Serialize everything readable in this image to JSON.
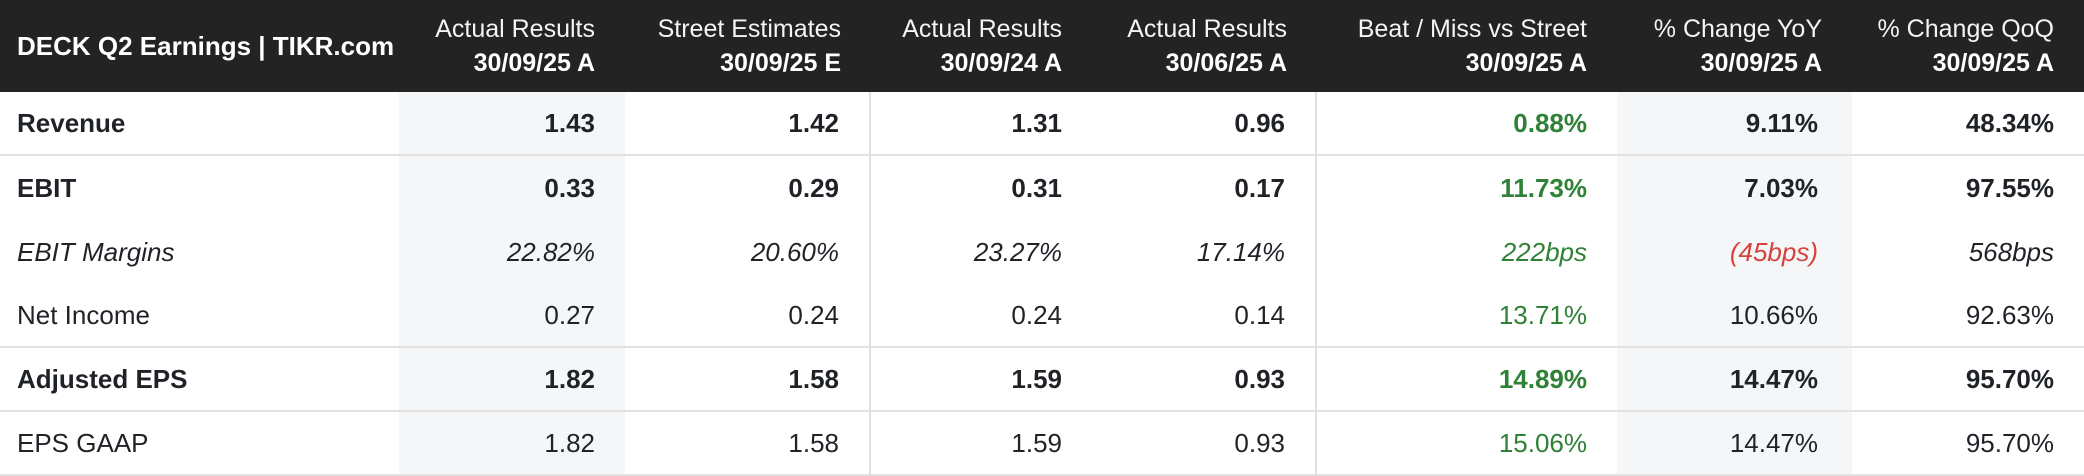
{
  "chart_data": {
    "type": "table",
    "title": "DECK Q2 Earnings | TIKR.com",
    "columns": [
      {
        "label": "Actual Results",
        "period": "30/09/25 A"
      },
      {
        "label": "Street Estimates",
        "period": "30/09/25 E"
      },
      {
        "label": "Actual Results",
        "period": "30/09/24 A"
      },
      {
        "label": "Actual Results",
        "period": "30/06/25 A"
      },
      {
        "label": "Beat / Miss vs Street",
        "period": "30/09/25 A"
      },
      {
        "label": "% Change YoY",
        "period": "30/09/25 A"
      },
      {
        "label": "% Change QoQ",
        "period": "30/09/25 A"
      }
    ],
    "rows": [
      {
        "label": "Revenue",
        "values": [
          "1.43",
          "1.42",
          "1.31",
          "0.96",
          "0.88%",
          "9.11%",
          "48.34%"
        ]
      },
      {
        "label": "EBIT",
        "values": [
          "0.33",
          "0.29",
          "0.31",
          "0.17",
          "11.73%",
          "7.03%",
          "97.55%"
        ]
      },
      {
        "label": "EBIT Margins",
        "values": [
          "22.82%",
          "20.60%",
          "23.27%",
          "17.14%",
          "222bps",
          "(45bps)",
          "568bps"
        ]
      },
      {
        "label": "Net Income",
        "values": [
          "0.27",
          "0.24",
          "0.24",
          "0.14",
          "13.71%",
          "10.66%",
          "92.63%"
        ]
      },
      {
        "label": "Adjusted EPS",
        "values": [
          "1.82",
          "1.58",
          "1.59",
          "0.93",
          "14.89%",
          "14.47%",
          "95.70%"
        ]
      },
      {
        "label": "EPS GAAP",
        "values": [
          "1.82",
          "1.58",
          "1.59",
          "0.93",
          "15.06%",
          "14.47%",
          "95.70%"
        ]
      }
    ],
    "layout_hints": {
      "highlighted_columns": [
        "Actual Results 30/09/25 A",
        "% Change YoY 30/09/25 A"
      ],
      "bold_rows": [
        "Revenue",
        "EBIT",
        "Adjusted EPS"
      ],
      "italic_rows": [
        "EBIT Margins"
      ],
      "beat_miss_color": "positive-green",
      "negative_value": "(45bps)"
    }
  },
  "colors": {
    "header_bg": "#232323",
    "header_text": "#ffffff",
    "body_text": "#1f2227",
    "positive": "#2f8136",
    "negative": "#d6423c",
    "column_highlight": "#f5f6f7",
    "divider": "#e2e2e2"
  }
}
